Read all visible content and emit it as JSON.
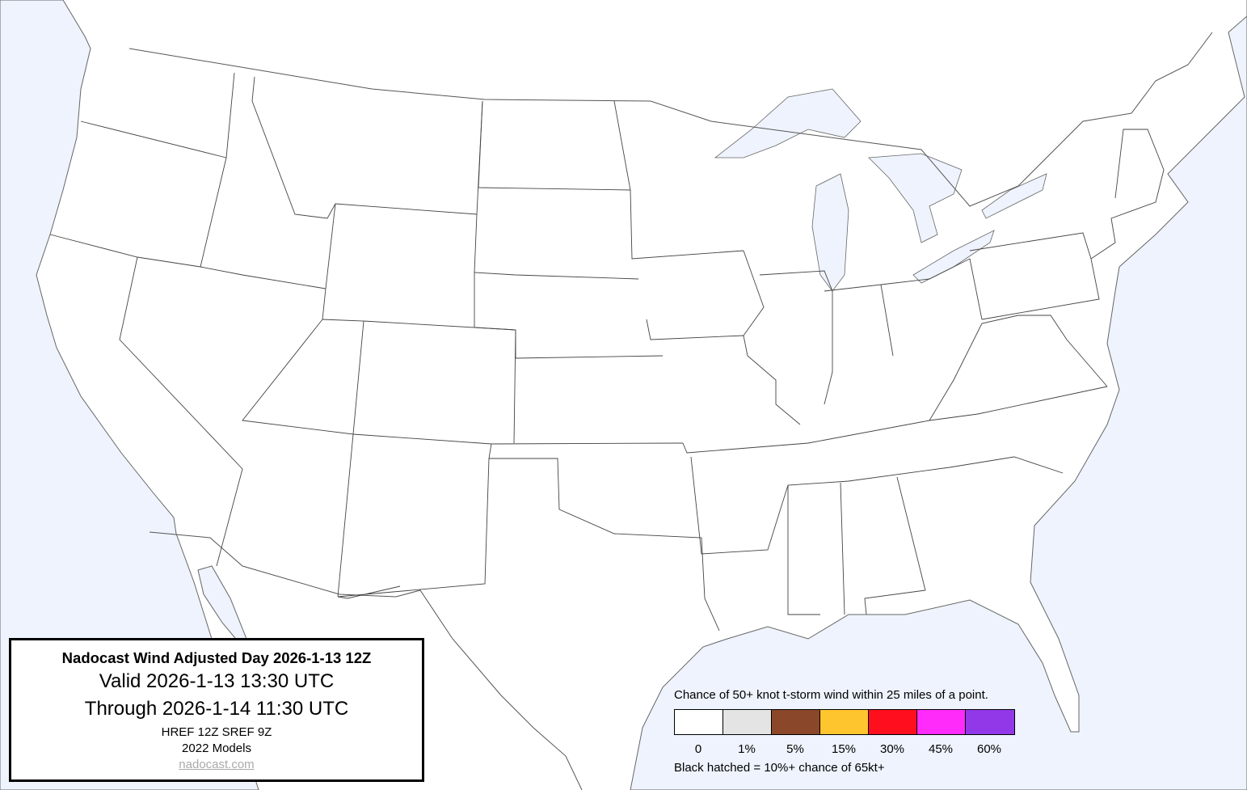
{
  "title_box": {
    "title": "Nadocast Wind Adjusted Day 2026-1-13 12Z",
    "valid": "Valid 2026-1-13 13:30 UTC",
    "through": "Through 2026-1-14 11:30 UTC",
    "models": "HREF 12Z SREF 9Z",
    "model_version": "2022 Models",
    "link": "nadocast.com"
  },
  "legend": {
    "caption": "Chance of 50+ knot t-storm wind within 25 miles of a point.",
    "bins": [
      {
        "label": "0",
        "color": "#ffffff"
      },
      {
        "label": "1%",
        "color": "#e4e4e4"
      },
      {
        "label": "5%",
        "color": "#8b4729"
      },
      {
        "label": "15%",
        "color": "#ffc52e"
      },
      {
        "label": "30%",
        "color": "#ff0f1e"
      },
      {
        "label": "45%",
        "color": "#ff2bfa"
      },
      {
        "label": "60%",
        "color": "#9238e9"
      }
    ],
    "hatch_note": "Black hatched = 10%+ chance of 65kt+"
  },
  "colors": {
    "water": "#eef3fd",
    "land": "#ffffff",
    "borders": "#444444"
  }
}
